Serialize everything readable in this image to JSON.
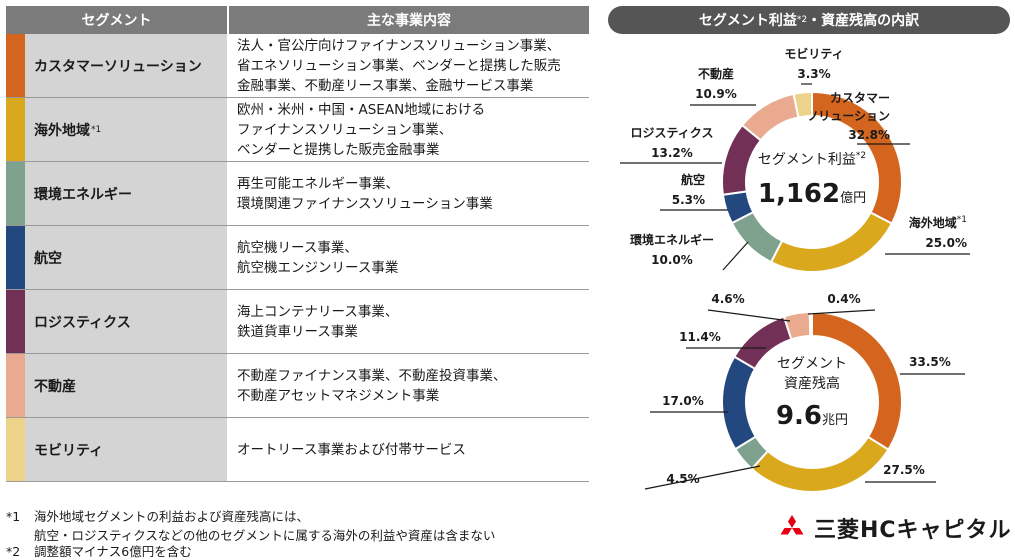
{
  "table": {
    "header_segment": "セグメント",
    "header_business": "主な事業内容",
    "rows": [
      {
        "name": "カスタマーソリューション",
        "sup": "",
        "color": "#d4651e",
        "lines": [
          "法人・官公庁向けファイナンスソリューション事業、",
          "省エネソリューション事業、ベンダーと提携した販売",
          "金融事業、不動産リース事業、金融サービス事業"
        ]
      },
      {
        "name": "海外地域",
        "sup": "*1",
        "color": "#d9a81c",
        "lines": [
          "欧州・米州・中国・ASEAN地域における",
          "ファイナンスソリューション事業、",
          "ベンダーと提携した販売金融事業"
        ]
      },
      {
        "name": "環境エネルギー",
        "sup": "",
        "color": "#7ea28e",
        "lines": [
          "再生可能エネルギー事業、",
          "環境関連ファイナンスソリューション事業"
        ]
      },
      {
        "name": "航空",
        "sup": "",
        "color": "#23487f",
        "lines": [
          "航空機リース事業、",
          "航空機エンジンリース事業"
        ]
      },
      {
        "name": "ロジスティクス",
        "sup": "",
        "color": "#733056",
        "lines": [
          "海上コンテナリース事業、",
          "鉄道貨車リース事業"
        ]
      },
      {
        "name": "不動産",
        "sup": "",
        "color": "#e9aa90",
        "lines": [
          "不動産ファイナンス事業、不動産投資事業、",
          "不動産アセットマネジメント事業"
        ]
      },
      {
        "name": "モビリティ",
        "sup": "",
        "color": "#ecd38a",
        "lines": [
          "オートリース事業および付帯サービス"
        ]
      }
    ]
  },
  "panel": {
    "title_a": "セグメント利益",
    "title_sup": "*2",
    "title_b": "・資産残高の内訳"
  },
  "chart_data": [
    {
      "type": "pie",
      "donut": true,
      "center_label": "セグメント利益",
      "center_sup": "*2",
      "center_value": "1,162",
      "center_unit": "億円",
      "slices": [
        {
          "label": "カスタマー",
          "label2": "ソリューション",
          "sup": "",
          "value": 32.8,
          "text": "32.8%",
          "color": "#d4651e"
        },
        {
          "label": "海外地域",
          "label2": "",
          "sup": "*1",
          "value": 25.0,
          "text": "25.0%",
          "color": "#d9a81c"
        },
        {
          "label": "環境エネルギー",
          "label2": "",
          "sup": "",
          "value": 10.0,
          "text": "10.0%",
          "color": "#7ea28e"
        },
        {
          "label": "航空",
          "label2": "",
          "sup": "",
          "value": 5.3,
          "text": "5.3%",
          "color": "#23487f"
        },
        {
          "label": "ロジスティクス",
          "label2": "",
          "sup": "",
          "value": 13.2,
          "text": "13.2%",
          "color": "#733056"
        },
        {
          "label": "不動産",
          "label2": "",
          "sup": "",
          "value": 10.9,
          "text": "10.9%",
          "color": "#e9aa90"
        },
        {
          "label": "モビリティ",
          "label2": "",
          "sup": "",
          "value": 3.3,
          "text": "3.3%",
          "color": "#ecd38a"
        }
      ]
    },
    {
      "type": "pie",
      "donut": true,
      "center_label": "セグメント",
      "center_label2": "資産残高",
      "center_value": "9.6",
      "center_unit": "兆円",
      "slices": [
        {
          "value": 33.5,
          "text": "33.5%",
          "color": "#d4651e"
        },
        {
          "value": 27.5,
          "text": "27.5%",
          "color": "#d9a81c"
        },
        {
          "value": 4.5,
          "text": "4.5%",
          "color": "#7ea28e"
        },
        {
          "value": 17.0,
          "text": "17.0%",
          "color": "#23487f"
        },
        {
          "value": 11.4,
          "text": "11.4%",
          "color": "#733056"
        },
        {
          "value": 4.6,
          "text": "4.6%",
          "color": "#e9aa90"
        },
        {
          "value": 0.4,
          "text": "0.4%",
          "color": "#ecd38a"
        }
      ]
    }
  ],
  "footnotes": [
    {
      "num": "*1",
      "lines": [
        "海外地域セグメントの利益および資産残高には、",
        "航空・ロジスティクスなどの他のセグメントに属する海外の利益や資産は含まない"
      ]
    },
    {
      "num": "*2",
      "lines": [
        "調整額マイナス6億円を含む"
      ]
    }
  ],
  "logo": {
    "text": "三菱HCキャピタル",
    "icon": "three-diamonds-icon",
    "color": "#e60012"
  }
}
